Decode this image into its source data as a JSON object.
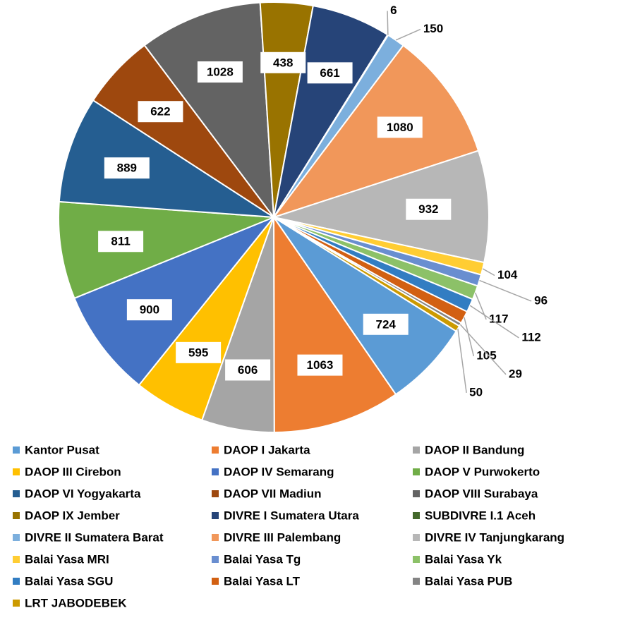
{
  "chart_data": {
    "type": "pie",
    "categories": [
      "Kantor Pusat",
      "DAOP I Jakarta",
      "DAOP II Bandung",
      "DAOP III Cirebon",
      "DAOP IV Semarang",
      "DAOP V Purwokerto",
      "DAOP VI Yogyakarta",
      "DAOP VII Madiun",
      "DAOP VIII Surabaya",
      "DAOP IX Jember",
      "DIVRE I Sumatera Utara",
      "SUBDIVRE I.1 Aceh",
      "DIVRE II Sumatera Barat",
      "DIVRE III Palembang",
      "DIVRE IV Tanjungkarang",
      "Balai Yasa MRI",
      "Balai Yasa Tg",
      "Balai Yasa Yk",
      "Balai Yasa SGU",
      "Balai Yasa LT",
      "Balai Yasa PUB",
      "LRT JABODEBEK"
    ],
    "values": [
      724,
      1063,
      606,
      595,
      900,
      811,
      889,
      622,
      1028,
      438,
      661,
      6,
      150,
      1080,
      932,
      104,
      96,
      117,
      112,
      105,
      29,
      50
    ],
    "colors": [
      "#5b9bd5",
      "#ed7d31",
      "#a5a5a5",
      "#ffc000",
      "#4472c4",
      "#70ad47",
      "#255e91",
      "#9e480e",
      "#636363",
      "#997300",
      "#264478",
      "#43682b",
      "#7cafdd",
      "#f1975a",
      "#b7b7b7",
      "#ffcd33",
      "#698ed0",
      "#8cc168",
      "#327dc2",
      "#d26012",
      "#848484",
      "#cc9a00"
    ],
    "legend": "bottom"
  }
}
